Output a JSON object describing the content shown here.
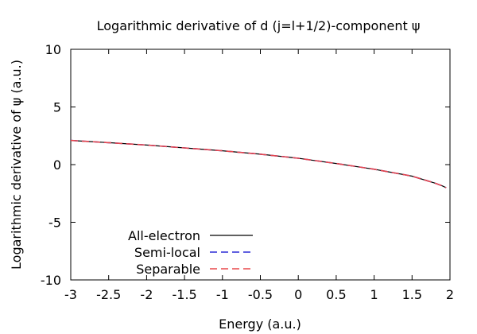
{
  "chart_data": {
    "type": "line",
    "title": "Logarithmic derivative of d (j=l+1/2)-component ψ",
    "xlabel": "Energy (a.u.)",
    "ylabel": "Logarithmic derivative of ψ (a.u.)",
    "xlim": [
      -3,
      2
    ],
    "ylim": [
      -10,
      10
    ],
    "xticks": [
      -3,
      -2.5,
      -2,
      -1.5,
      -1,
      -0.5,
      0,
      0.5,
      1,
      1.5,
      2
    ],
    "yticks": [
      -10,
      -5,
      0,
      5,
      10
    ],
    "grid": false,
    "legend_position": "bottom-left",
    "series": [
      {
        "name": "All-electron",
        "color": "#000000",
        "dash": "solid",
        "x": [
          -3.0,
          -2.5,
          -2.0,
          -1.5,
          -1.0,
          -0.5,
          0.0,
          0.5,
          1.0,
          1.25,
          1.5,
          1.7,
          1.8,
          1.9,
          1.95
        ],
        "y": [
          2.1,
          1.9,
          1.7,
          1.45,
          1.2,
          0.9,
          0.55,
          0.1,
          -0.4,
          -0.7,
          -1.0,
          -1.4,
          -1.6,
          -1.85,
          -2.0
        ]
      },
      {
        "name": "Semi-local",
        "color": "#2b2bd6",
        "dash": "dashed",
        "x": [
          -3.0,
          -2.5,
          -2.0,
          -1.5,
          -1.0,
          -0.5,
          0.0,
          0.5,
          1.0,
          1.25,
          1.5,
          1.7,
          1.8,
          1.9,
          1.95
        ],
        "y": [
          2.1,
          1.9,
          1.7,
          1.45,
          1.2,
          0.9,
          0.55,
          0.1,
          -0.4,
          -0.7,
          -1.0,
          -1.4,
          -1.6,
          -1.85,
          -2.0
        ]
      },
      {
        "name": "Separable",
        "color": "#e8484b",
        "dash": "dashed",
        "x": [
          -3.0,
          -2.5,
          -2.0,
          -1.5,
          -1.0,
          -0.5,
          0.0,
          0.5,
          1.0,
          1.25,
          1.5,
          1.7,
          1.8,
          1.9,
          1.95
        ],
        "y": [
          2.1,
          1.9,
          1.7,
          1.45,
          1.2,
          0.9,
          0.55,
          0.1,
          -0.4,
          -0.7,
          -1.0,
          -1.4,
          -1.6,
          -1.85,
          -2.0
        ]
      }
    ]
  }
}
